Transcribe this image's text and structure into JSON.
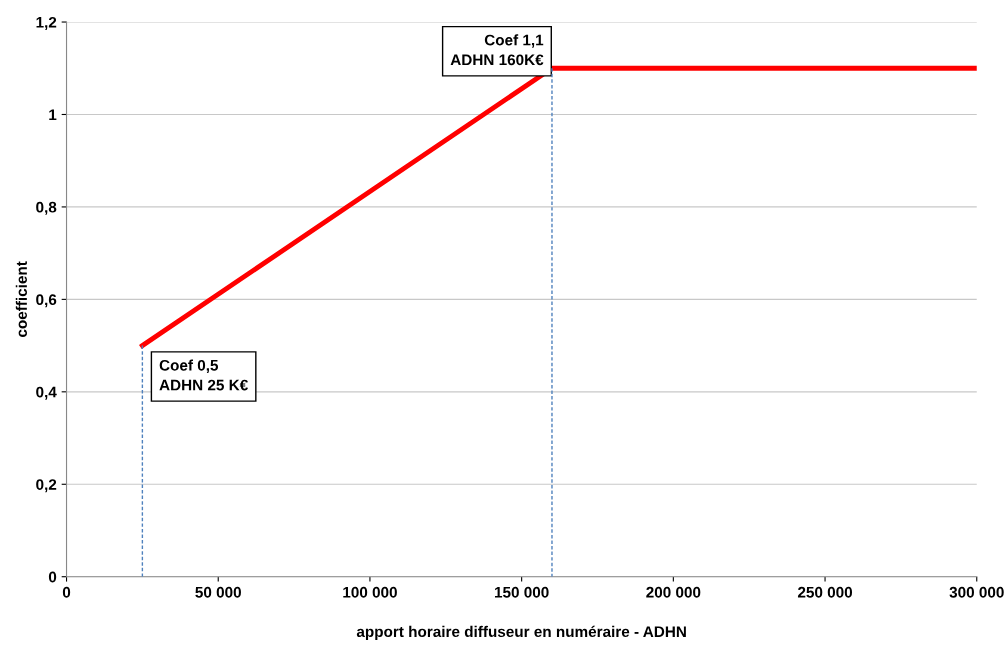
{
  "chart_data": {
    "type": "line",
    "xlabel": "apport horaire diffuseur en numéraire - ADHN",
    "ylabel": "coefficient",
    "xlim": [
      0,
      300000
    ],
    "ylim": [
      0,
      1.2
    ],
    "xticks": [
      0,
      {
        "value": 50000,
        "label": "50 000"
      },
      {
        "value": 100000,
        "label": "100 000"
      },
      {
        "value": 150000,
        "label": "150 000"
      },
      {
        "value": 200000,
        "label": "200 000"
      },
      {
        "value": 250000,
        "label": "250 000"
      },
      {
        "value": 300000,
        "label": "300 000"
      }
    ],
    "yticks": [
      0,
      {
        "value": 0.2,
        "label": "0,2"
      },
      {
        "value": 0.4,
        "label": "0,4"
      },
      {
        "value": 0.6,
        "label": "0,6"
      },
      {
        "value": 0.8,
        "label": "0,8"
      },
      {
        "value": 1,
        "label": "1"
      },
      {
        "value": 1.2,
        "label": "1,2"
      }
    ],
    "grid": "y",
    "legend": false,
    "marker": "none",
    "series": [
      {
        "color": "#ff0000",
        "x": [
          25000,
          160000,
          300000
        ],
        "values": [
          0.5,
          1.1,
          1.1
        ],
        "line_style": "solid"
      },
      {
        "color": "#4f81bd",
        "x": [
          25000,
          25000
        ],
        "values": [
          0.5,
          0
        ],
        "line_style": "dashed"
      },
      {
        "color": "#4f81bd",
        "x": [
          160000,
          160000
        ],
        "values": [
          1.1,
          0
        ],
        "line_style": "dashed"
      }
    ],
    "annotations": [
      {
        "text": "Coef 0,5\nADHN 25 K€",
        "x": 25000,
        "y": 0.5
      },
      {
        "text": "Coef 1,1\nADHN 160K€",
        "x": 160000,
        "y": 1.1
      }
    ]
  }
}
